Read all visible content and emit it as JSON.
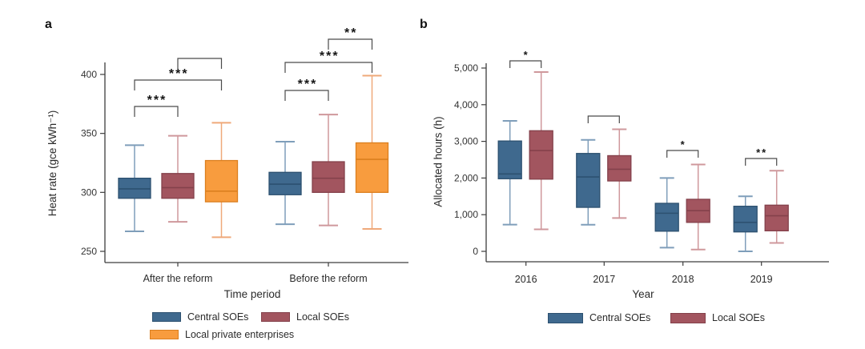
{
  "page": {
    "background": "#ffffff"
  },
  "panels": [
    {
      "letter": "a"
    },
    {
      "letter": "b"
    }
  ],
  "colors": {
    "central_soes": "#3f698e",
    "local_soes": "#a2555f",
    "local_private": "#f89c3e",
    "axis": "#3d3d3d",
    "bracket": "#4a4a4a"
  },
  "chart_data": [
    {
      "type": "box",
      "panel": "a",
      "xlabel": "Time period",
      "ylabel": "Heat rate (gce kWh⁻¹)",
      "ylim": [
        250,
        400
      ],
      "yticks": [
        250,
        300,
        350,
        400
      ],
      "ytick_labels": [
        "250",
        "300",
        "350",
        "400"
      ],
      "categories": [
        "After the reform",
        "Before the reform"
      ],
      "legend_position": "bottom",
      "grid": false,
      "series": [
        {
          "name": "Central SOEs",
          "fill": "#3f698e",
          "stroke": "#2d5170",
          "whisker": "#7f9eba",
          "boxes": [
            {
              "low": 267,
              "q1": 295,
              "median": 303,
              "q3": 312,
              "high": 340
            },
            {
              "low": 273,
              "q1": 298,
              "median": 307,
              "q3": 317,
              "high": 343
            }
          ]
        },
        {
          "name": "Local SOEs",
          "fill": "#a2555f",
          "stroke": "#84414b",
          "whisker": "#cf989c",
          "boxes": [
            {
              "low": 275,
              "q1": 295,
              "median": 304,
              "q3": 316,
              "high": 348
            },
            {
              "low": 272,
              "q1": 300,
              "median": 312,
              "q3": 326,
              "high": 366
            }
          ]
        },
        {
          "name": "Local private enterprises",
          "fill": "#f89c3e",
          "stroke": "#db7f1f",
          "whisker": "#efa97a",
          "boxes": [
            {
              "low": 262,
              "q1": 292,
              "median": 301,
              "q3": 327,
              "high": 359
            },
            {
              "low": 269,
              "q1": 300,
              "median": 328,
              "q3": 342,
              "high": 399
            }
          ]
        }
      ],
      "significance": [
        {
          "category_index": 0,
          "series_pair": [
            0,
            1
          ],
          "label": "***"
        },
        {
          "category_index": 0,
          "series_pair": [
            0,
            2
          ],
          "label": "***"
        },
        {
          "category_index": 0,
          "series_pair": [
            1,
            2
          ],
          "label": ""
        },
        {
          "category_index": 1,
          "series_pair": [
            0,
            1
          ],
          "label": "***"
        },
        {
          "category_index": 1,
          "series_pair": [
            0,
            2
          ],
          "label": "***"
        },
        {
          "category_index": 1,
          "series_pair": [
            1,
            2
          ],
          "label": "**"
        }
      ]
    },
    {
      "type": "box",
      "panel": "b",
      "xlabel": "Year",
      "ylabel": "Allocated hours (h)",
      "ylim": [
        0,
        5000
      ],
      "yticks": [
        0,
        1000,
        2000,
        3000,
        4000,
        5000
      ],
      "ytick_labels": [
        "0",
        "1,000",
        "2,000",
        "3,000",
        "4,000",
        "5,000"
      ],
      "categories": [
        "2016",
        "2017",
        "2018",
        "2019"
      ],
      "legend_position": "bottom",
      "grid": false,
      "series": [
        {
          "name": "Central SOEs",
          "fill": "#3f698e",
          "stroke": "#2d5170",
          "whisker": "#7f9eba",
          "boxes": [
            {
              "low": 730,
              "q1": 1980,
              "median": 2110,
              "q3": 3010,
              "high": 3560
            },
            {
              "low": 725,
              "q1": 1200,
              "median": 2030,
              "q3": 2670,
              "high": 3040
            },
            {
              "low": 100,
              "q1": 550,
              "median": 1040,
              "q3": 1310,
              "high": 2000
            },
            {
              "low": 0,
              "q1": 530,
              "median": 790,
              "q3": 1230,
              "high": 1500
            }
          ]
        },
        {
          "name": "Local SOEs",
          "fill": "#a2555f",
          "stroke": "#84414b",
          "whisker": "#cf989c",
          "boxes": [
            {
              "low": 600,
              "q1": 1970,
              "median": 2750,
              "q3": 3290,
              "high": 4890
            },
            {
              "low": 910,
              "q1": 1920,
              "median": 2240,
              "q3": 2610,
              "high": 3330
            },
            {
              "low": 50,
              "q1": 790,
              "median": 1110,
              "q3": 1420,
              "high": 2370
            },
            {
              "low": 230,
              "q1": 560,
              "median": 970,
              "q3": 1260,
              "high": 2200
            }
          ]
        }
      ],
      "significance": [
        {
          "category_index": 0,
          "series_pair": [
            0,
            1
          ],
          "label": "*"
        },
        {
          "category_index": 1,
          "series_pair": [
            0,
            1
          ],
          "label": ""
        },
        {
          "category_index": 2,
          "series_pair": [
            0,
            1
          ],
          "label": "*"
        },
        {
          "category_index": 3,
          "series_pair": [
            0,
            1
          ],
          "label": "**"
        }
      ]
    }
  ]
}
